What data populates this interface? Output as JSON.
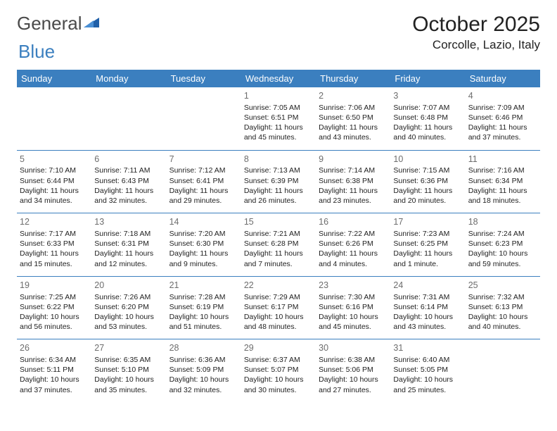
{
  "logo": {
    "text1": "General",
    "text2": "Blue",
    "mark_color": "#1f5fa8"
  },
  "header": {
    "title": "October 2025",
    "location": "Corcolle, Lazio, Italy",
    "title_fontsize": 30,
    "location_fontsize": 17
  },
  "colors": {
    "header_bg": "#3b7fbf",
    "header_text": "#ffffff",
    "row_divider": "#3b7fbf",
    "daynum": "#6d6d6d",
    "body_text": "#222222",
    "background": "#ffffff"
  },
  "weekdays": [
    "Sunday",
    "Monday",
    "Tuesday",
    "Wednesday",
    "Thursday",
    "Friday",
    "Saturday"
  ],
  "weeks": [
    [
      null,
      null,
      null,
      {
        "n": "1",
        "sr": "7:05 AM",
        "ss": "6:51 PM",
        "dl": "11 hours and 45 minutes."
      },
      {
        "n": "2",
        "sr": "7:06 AM",
        "ss": "6:50 PM",
        "dl": "11 hours and 43 minutes."
      },
      {
        "n": "3",
        "sr": "7:07 AM",
        "ss": "6:48 PM",
        "dl": "11 hours and 40 minutes."
      },
      {
        "n": "4",
        "sr": "7:09 AM",
        "ss": "6:46 PM",
        "dl": "11 hours and 37 minutes."
      }
    ],
    [
      {
        "n": "5",
        "sr": "7:10 AM",
        "ss": "6:44 PM",
        "dl": "11 hours and 34 minutes."
      },
      {
        "n": "6",
        "sr": "7:11 AM",
        "ss": "6:43 PM",
        "dl": "11 hours and 32 minutes."
      },
      {
        "n": "7",
        "sr": "7:12 AM",
        "ss": "6:41 PM",
        "dl": "11 hours and 29 minutes."
      },
      {
        "n": "8",
        "sr": "7:13 AM",
        "ss": "6:39 PM",
        "dl": "11 hours and 26 minutes."
      },
      {
        "n": "9",
        "sr": "7:14 AM",
        "ss": "6:38 PM",
        "dl": "11 hours and 23 minutes."
      },
      {
        "n": "10",
        "sr": "7:15 AM",
        "ss": "6:36 PM",
        "dl": "11 hours and 20 minutes."
      },
      {
        "n": "11",
        "sr": "7:16 AM",
        "ss": "6:34 PM",
        "dl": "11 hours and 18 minutes."
      }
    ],
    [
      {
        "n": "12",
        "sr": "7:17 AM",
        "ss": "6:33 PM",
        "dl": "11 hours and 15 minutes."
      },
      {
        "n": "13",
        "sr": "7:18 AM",
        "ss": "6:31 PM",
        "dl": "11 hours and 12 minutes."
      },
      {
        "n": "14",
        "sr": "7:20 AM",
        "ss": "6:30 PM",
        "dl": "11 hours and 9 minutes."
      },
      {
        "n": "15",
        "sr": "7:21 AM",
        "ss": "6:28 PM",
        "dl": "11 hours and 7 minutes."
      },
      {
        "n": "16",
        "sr": "7:22 AM",
        "ss": "6:26 PM",
        "dl": "11 hours and 4 minutes."
      },
      {
        "n": "17",
        "sr": "7:23 AM",
        "ss": "6:25 PM",
        "dl": "11 hours and 1 minute."
      },
      {
        "n": "18",
        "sr": "7:24 AM",
        "ss": "6:23 PM",
        "dl": "10 hours and 59 minutes."
      }
    ],
    [
      {
        "n": "19",
        "sr": "7:25 AM",
        "ss": "6:22 PM",
        "dl": "10 hours and 56 minutes."
      },
      {
        "n": "20",
        "sr": "7:26 AM",
        "ss": "6:20 PM",
        "dl": "10 hours and 53 minutes."
      },
      {
        "n": "21",
        "sr": "7:28 AM",
        "ss": "6:19 PM",
        "dl": "10 hours and 51 minutes."
      },
      {
        "n": "22",
        "sr": "7:29 AM",
        "ss": "6:17 PM",
        "dl": "10 hours and 48 minutes."
      },
      {
        "n": "23",
        "sr": "7:30 AM",
        "ss": "6:16 PM",
        "dl": "10 hours and 45 minutes."
      },
      {
        "n": "24",
        "sr": "7:31 AM",
        "ss": "6:14 PM",
        "dl": "10 hours and 43 minutes."
      },
      {
        "n": "25",
        "sr": "7:32 AM",
        "ss": "6:13 PM",
        "dl": "10 hours and 40 minutes."
      }
    ],
    [
      {
        "n": "26",
        "sr": "6:34 AM",
        "ss": "5:11 PM",
        "dl": "10 hours and 37 minutes."
      },
      {
        "n": "27",
        "sr": "6:35 AM",
        "ss": "5:10 PM",
        "dl": "10 hours and 35 minutes."
      },
      {
        "n": "28",
        "sr": "6:36 AM",
        "ss": "5:09 PM",
        "dl": "10 hours and 32 minutes."
      },
      {
        "n": "29",
        "sr": "6:37 AM",
        "ss": "5:07 PM",
        "dl": "10 hours and 30 minutes."
      },
      {
        "n": "30",
        "sr": "6:38 AM",
        "ss": "5:06 PM",
        "dl": "10 hours and 27 minutes."
      },
      {
        "n": "31",
        "sr": "6:40 AM",
        "ss": "5:05 PM",
        "dl": "10 hours and 25 minutes."
      },
      null
    ]
  ],
  "labels": {
    "sunrise": "Sunrise: ",
    "sunset": "Sunset: ",
    "daylight": "Daylight: "
  }
}
